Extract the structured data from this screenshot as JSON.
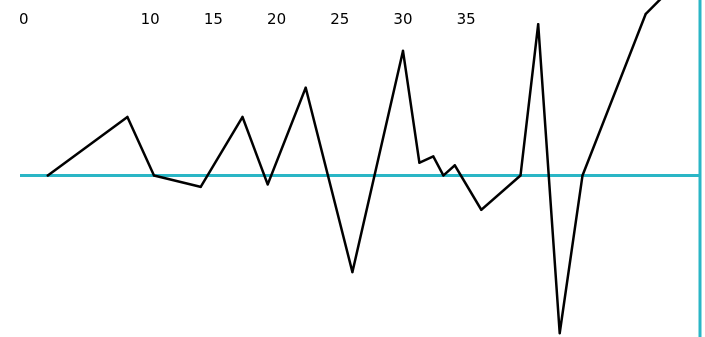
{
  "colors": {
    "background": "#ffffff",
    "line": "#000000",
    "axis": "#2ab6c6"
  },
  "chart_data": {
    "type": "line",
    "title": "",
    "xlabel": "",
    "ylabel": "",
    "grid": false,
    "legend": "none",
    "x_ticks": [
      "0",
      "10",
      "15",
      "20",
      "25",
      "30",
      "35"
    ],
    "points": [
      {
        "x": 1.9,
        "y": 0.0
      },
      {
        "x": 8.2,
        "y": 0.46
      },
      {
        "x": 10.3,
        "y": 0.0
      },
      {
        "x": 14.0,
        "y": -0.09
      },
      {
        "x": 17.3,
        "y": 0.46
      },
      {
        "x": 19.3,
        "y": -0.07
      },
      {
        "x": 22.3,
        "y": 0.69
      },
      {
        "x": 26.0,
        "y": -0.76
      },
      {
        "x": 30.0,
        "y": 0.98
      },
      {
        "x": 31.3,
        "y": 0.1
      },
      {
        "x": 32.4,
        "y": 0.15
      },
      {
        "x": 33.2,
        "y": 0.0
      },
      {
        "x": 34.1,
        "y": 0.08
      },
      {
        "x": 36.2,
        "y": -0.27
      },
      {
        "x": 39.3,
        "y": 0.0
      },
      {
        "x": 40.7,
        "y": 1.19
      },
      {
        "x": 42.4,
        "y": -1.24
      },
      {
        "x": 44.2,
        "y": 0.0
      },
      {
        "x": 49.2,
        "y": 1.27
      },
      {
        "x": 50.5,
        "y": 1.4
      }
    ],
    "xlim": [
      -0.3,
      53.5
    ],
    "ylim": [
      -1.27,
      1.38
    ]
  }
}
